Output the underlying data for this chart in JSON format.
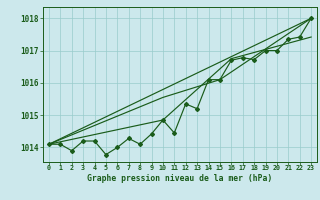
{
  "title": "Graphe pression niveau de la mer (hPa)",
  "ylim": [
    1013.55,
    1018.35
  ],
  "xlim": [
    -0.5,
    23.5
  ],
  "yticks": [
    1014,
    1015,
    1016,
    1017,
    1018
  ],
  "background_color": "#cce8ec",
  "grid_color": "#99cccc",
  "line_color": "#1a5c1a",
  "series1_x": [
    0,
    1,
    2,
    3,
    4,
    5,
    6,
    7,
    8,
    9,
    10,
    11,
    12,
    13,
    14,
    15,
    16,
    17,
    18,
    19,
    20,
    21,
    22,
    23
  ],
  "series1_y": [
    1014.1,
    1014.1,
    1013.9,
    1014.2,
    1014.2,
    1013.78,
    1014.0,
    1014.28,
    1014.1,
    1014.42,
    1014.85,
    1014.45,
    1015.35,
    1015.2,
    1016.1,
    1016.1,
    1016.7,
    1016.78,
    1016.72,
    1017.0,
    1017.0,
    1017.35,
    1017.42,
    1018.0
  ],
  "series2_x": [
    0,
    23
  ],
  "series2_y": [
    1014.1,
    1018.0
  ],
  "series3_x": [
    0,
    10,
    15,
    23
  ],
  "series3_y": [
    1014.1,
    1015.55,
    1016.1,
    1018.0
  ],
  "series4_x": [
    0,
    10,
    16,
    23
  ],
  "series4_y": [
    1014.1,
    1014.85,
    1016.75,
    1017.42
  ]
}
